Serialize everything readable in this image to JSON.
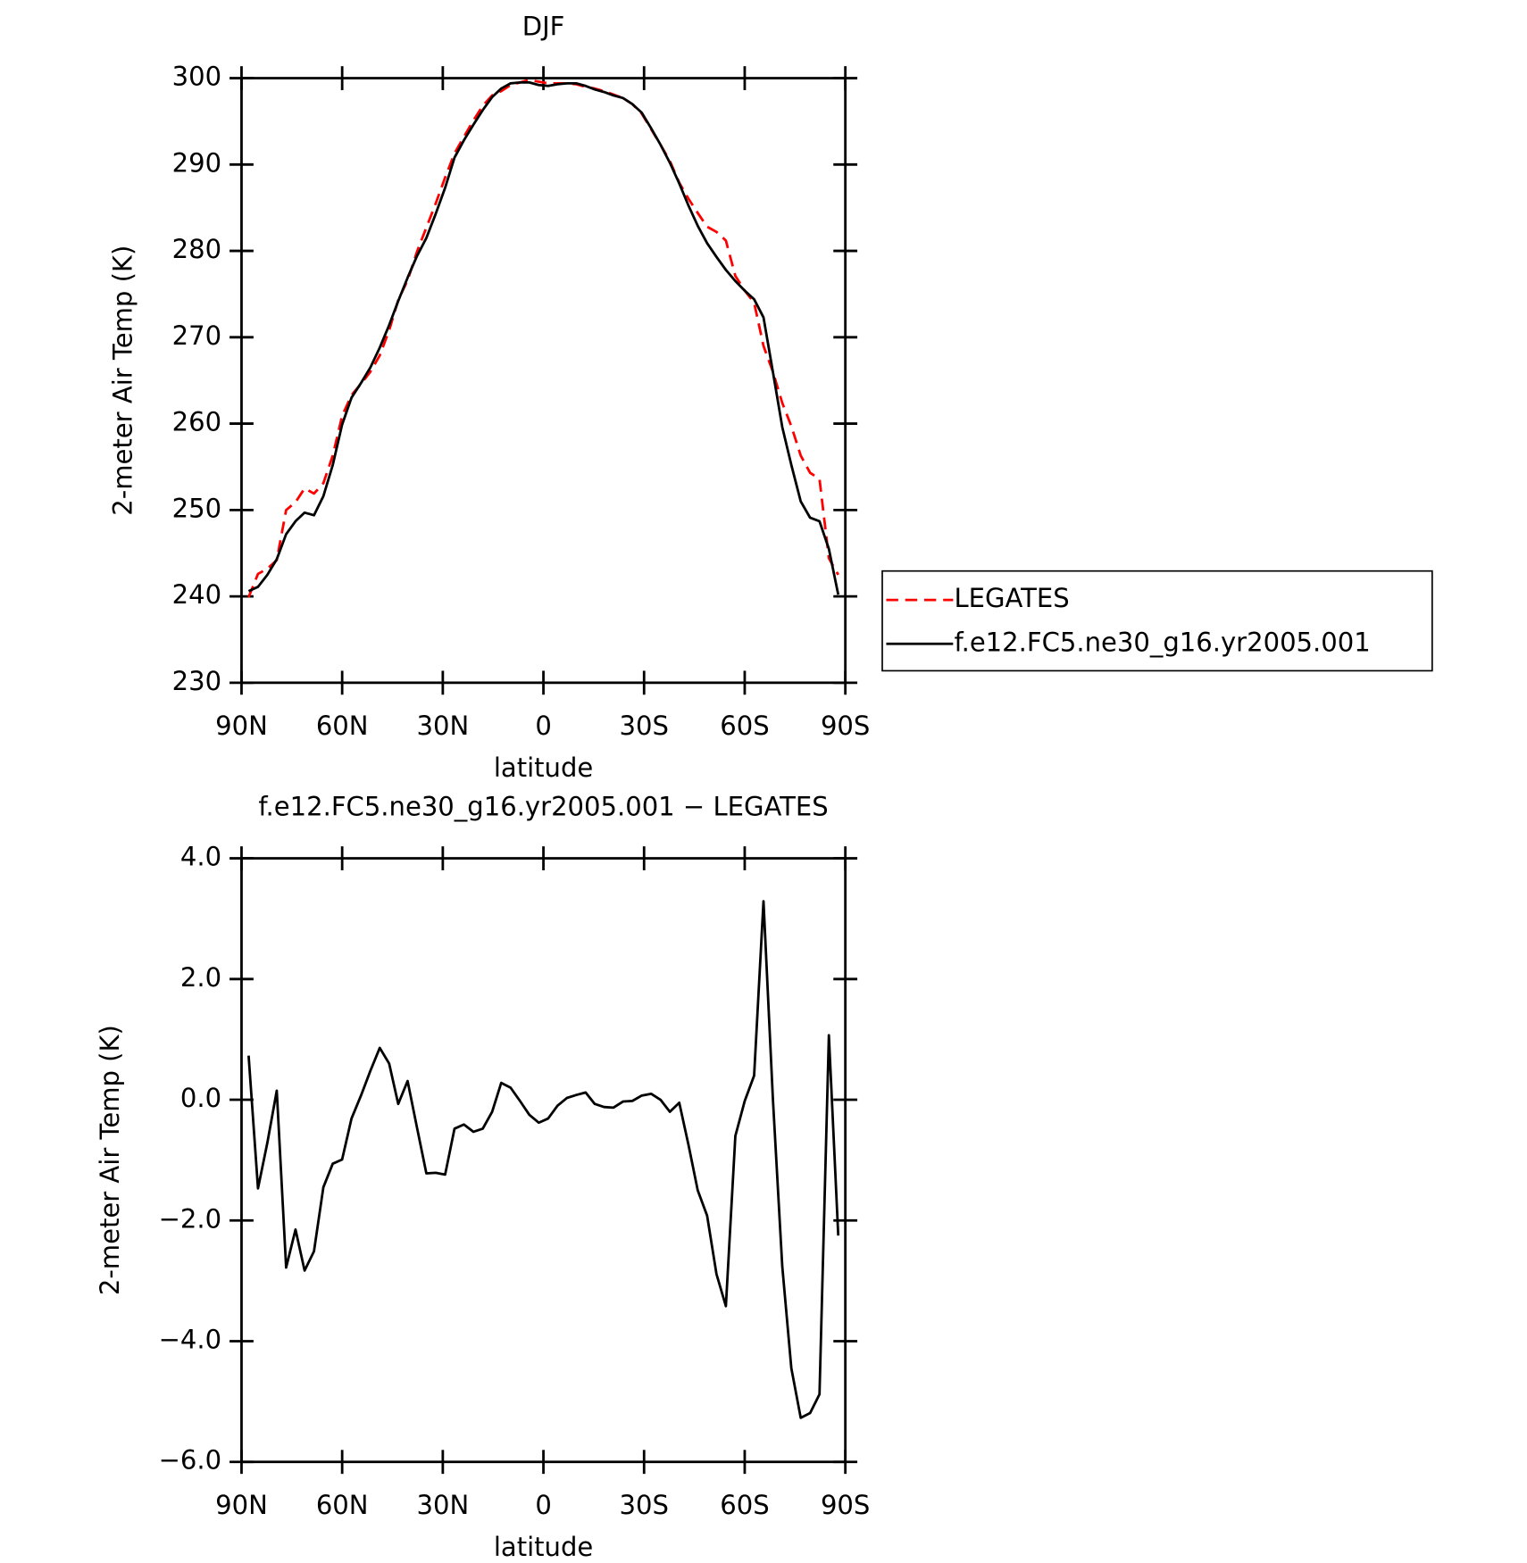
{
  "chart_data": [
    {
      "type": "line",
      "title": "DJF",
      "x_label": "latitude",
      "y_label": "2-meter Air Temp (K)",
      "x": [
        87.9,
        85.1,
        82.3,
        79.5,
        76.7,
        73.9,
        71.2,
        68.4,
        65.6,
        62.8,
        60.0,
        57.2,
        54.4,
        51.6,
        48.8,
        46.0,
        43.3,
        40.5,
        37.7,
        34.9,
        32.1,
        29.3,
        26.5,
        23.7,
        20.9,
        18.1,
        15.3,
        12.6,
        9.8,
        7.0,
        4.2,
        1.4,
        -1.4,
        -4.2,
        -7.0,
        -9.8,
        -12.6,
        -15.3,
        -18.1,
        -20.9,
        -23.7,
        -26.5,
        -29.3,
        -32.1,
        -34.9,
        -37.7,
        -40.5,
        -43.3,
        -46.0,
        -48.8,
        -51.6,
        -54.4,
        -57.2,
        -60.0,
        -62.8,
        -65.6,
        -68.4,
        -71.2,
        -73.9,
        -76.7,
        -79.5,
        -82.3,
        -85.1,
        -87.9
      ],
      "series": [
        {
          "name": "LEGATES",
          "color": "#ff0000",
          "line_style": "dashed",
          "values": [
            239.9,
            242.6,
            243.2,
            244.2,
            250.0,
            250.9,
            252.5,
            251.9,
            253.1,
            256.3,
            260.9,
            263.3,
            264.6,
            266.0,
            267.9,
            270.8,
            274.3,
            276.6,
            279.9,
            282.7,
            285.5,
            288.5,
            291.3,
            293.2,
            295.1,
            296.8,
            298.0,
            298.5,
            299.2,
            299.5,
            299.8,
            299.6,
            299.4,
            299.4,
            299.4,
            299.3,
            299.0,
            298.8,
            298.5,
            298.1,
            297.7,
            297.0,
            295.9,
            294.1,
            292.3,
            290.4,
            287.9,
            286.0,
            284.4,
            282.8,
            282.2,
            281.2,
            277.1,
            275.4,
            274.0,
            269.0,
            266.0,
            262.4,
            259.7,
            256.3,
            254.3,
            253.6,
            244.4,
            242.5
          ]
        },
        {
          "name": "f.e12.FC5.ne30_g16.yr2005.001",
          "color": "#000000",
          "line_style": "solid",
          "values": [
            240.6,
            241.1,
            242.5,
            244.3,
            247.2,
            248.7,
            249.7,
            249.4,
            251.6,
            255.2,
            259.9,
            263.0,
            264.7,
            266.5,
            268.8,
            271.4,
            274.2,
            276.9,
            279.4,
            281.5,
            284.3,
            287.3,
            290.8,
            292.8,
            294.6,
            296.3,
            297.8,
            298.8,
            299.4,
            299.5,
            299.5,
            299.2,
            299.1,
            299.3,
            299.4,
            299.4,
            299.1,
            298.7,
            298.4,
            298.0,
            297.7,
            297.0,
            296.0,
            294.2,
            292.3,
            290.2,
            287.8,
            285.2,
            282.9,
            280.9,
            279.3,
            277.8,
            276.5,
            275.4,
            274.4,
            272.3,
            266.0,
            259.6,
            255.2,
            251.0,
            249.1,
            248.7,
            245.5,
            240.2
          ]
        }
      ],
      "xlim": [
        90,
        -90
      ],
      "xticks": [
        {
          "value": 90,
          "label": "90N"
        },
        {
          "value": 60,
          "label": "60N"
        },
        {
          "value": 30,
          "label": "30N"
        },
        0,
        {
          "value": -30,
          "label": "30S"
        },
        {
          "value": -60,
          "label": "60S"
        },
        {
          "value": -90,
          "label": "90S"
        }
      ],
      "ylim": [
        230,
        300
      ],
      "yticks": [
        230,
        240,
        250,
        260,
        270,
        280,
        290,
        300
      ],
      "legend": "right"
    },
    {
      "type": "line",
      "title": "f.e12.FC5.ne30_g16.yr2005.001 − LEGATES",
      "x_label": "latitude",
      "y_label": "2-meter Air Temp (K)",
      "x": [
        87.9,
        85.1,
        82.3,
        79.5,
        76.7,
        73.9,
        71.2,
        68.4,
        65.6,
        62.8,
        60.0,
        57.2,
        54.4,
        51.6,
        48.8,
        46.0,
        43.3,
        40.5,
        37.7,
        34.9,
        32.1,
        29.3,
        26.5,
        23.7,
        20.9,
        18.1,
        15.3,
        12.6,
        9.8,
        7.0,
        4.2,
        1.4,
        -1.4,
        -4.2,
        -7.0,
        -9.8,
        -12.6,
        -15.3,
        -18.1,
        -20.9,
        -23.7,
        -26.5,
        -29.3,
        -32.1,
        -34.9,
        -37.7,
        -40.5,
        -43.3,
        -46.0,
        -48.8,
        -51.6,
        -54.4,
        -57.2,
        -60.0,
        -62.8,
        -65.6,
        -68.4,
        -71.2,
        -73.9,
        -76.7,
        -79.5,
        -82.3,
        -85.1,
        -87.9
      ],
      "color": "#000000",
      "values": [
        0.73,
        -1.47,
        -0.71,
        0.15,
        -2.78,
        -2.15,
        -2.83,
        -2.51,
        -1.45,
        -1.06,
        -0.99,
        -0.31,
        0.07,
        0.48,
        0.86,
        0.6,
        -0.07,
        0.31,
        -0.46,
        -1.22,
        -1.21,
        -1.24,
        -0.48,
        -0.41,
        -0.53,
        -0.48,
        -0.2,
        0.28,
        0.2,
        -0.02,
        -0.25,
        -0.38,
        -0.31,
        -0.1,
        0.03,
        0.08,
        0.12,
        -0.07,
        -0.12,
        -0.13,
        -0.03,
        -0.02,
        0.07,
        0.1,
        0.0,
        -0.2,
        -0.05,
        -0.76,
        -1.5,
        -1.92,
        -2.89,
        -3.42,
        -0.6,
        -0.02,
        0.4,
        3.29,
        0.02,
        -2.76,
        -4.45,
        -5.27,
        -5.19,
        -4.88,
        1.07,
        -2.25
      ],
      "xlim": [
        90,
        -90
      ],
      "xticks": [
        {
          "value": 90,
          "label": "90N"
        },
        {
          "value": 60,
          "label": "60N"
        },
        {
          "value": 30,
          "label": "30N"
        },
        0,
        {
          "value": -30,
          "label": "30S"
        },
        {
          "value": -60,
          "label": "60S"
        },
        {
          "value": -90,
          "label": "90S"
        }
      ],
      "ylim": [
        -6,
        4
      ],
      "yticks": [
        {
          "value": -6,
          "label": "−6.0"
        },
        {
          "value": -4,
          "label": "−4.0"
        },
        {
          "value": -2,
          "label": "−2.0"
        },
        {
          "value": 0,
          "label": "0.0"
        },
        {
          "value": 2,
          "label": "2.0"
        },
        {
          "value": 4,
          "label": "4.0"
        }
      ]
    }
  ]
}
